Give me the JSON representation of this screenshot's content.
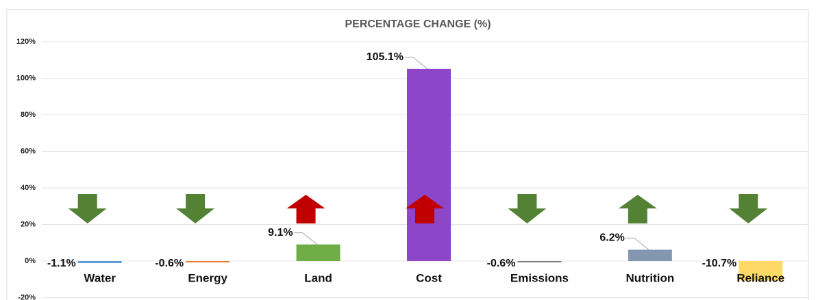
{
  "chart_data": {
    "type": "bar",
    "title": "PERCENTAGE CHANGE (%)",
    "categories": [
      "Water",
      "Energy",
      "Land",
      "Cost",
      "Emissions",
      "Nutrition",
      "Reliance"
    ],
    "values": [
      -1.1,
      -0.6,
      9.1,
      105.1,
      -0.6,
      6.2,
      -10.7
    ],
    "value_labels": [
      "-1.1%",
      "-0.6%",
      "9.1%",
      "105.1%",
      "-0.6%",
      "6.2%",
      "-10.7%"
    ],
    "colors": [
      "#5b9bd5",
      "#ed7d31",
      "#70ad47",
      "#8e46c9",
      "#7f7f7f",
      "#8497b0",
      "#ffd966"
    ],
    "ylim": [
      -20,
      120
    ],
    "yticks": [
      {
        "value": -20,
        "label": "-20%"
      },
      {
        "value": 0,
        "label": "0%"
      },
      {
        "value": 20,
        "label": "20%"
      },
      {
        "value": 40,
        "label": "40%"
      },
      {
        "value": 60,
        "label": "60%"
      },
      {
        "value": 80,
        "label": "80%"
      },
      {
        "value": 100,
        "label": "100%"
      },
      {
        "value": 120,
        "label": "120%"
      }
    ],
    "grid": true
  }
}
